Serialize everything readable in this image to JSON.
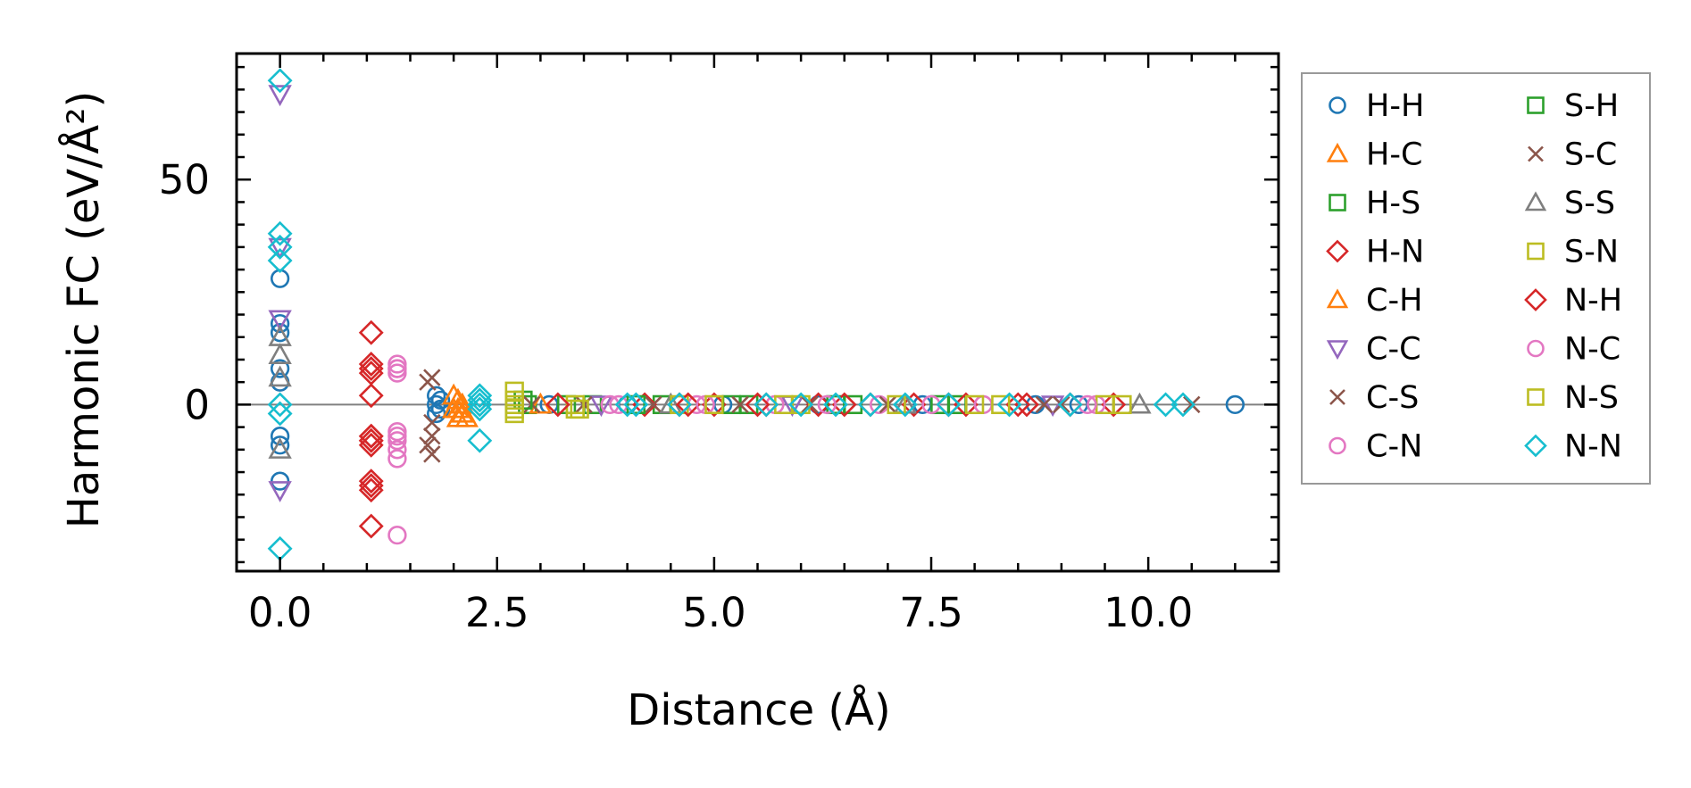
{
  "chart_data": {
    "type": "scatter",
    "title": "",
    "xlabel": "Distance (Å)",
    "ylabel": "Harmonic FC (eV/Å²)",
    "xlim": [
      -0.5,
      11.5
    ],
    "ylim": [
      -37,
      78
    ],
    "xticks": [
      0.0,
      2.5,
      5.0,
      7.5,
      10.0
    ],
    "xtick_labels": [
      "0.0",
      "2.5",
      "5.0",
      "7.5",
      "10.0"
    ],
    "yticks": [
      0,
      50
    ],
    "ytick_labels": [
      "0",
      "50"
    ],
    "grid": false,
    "zero_line": true,
    "legend": {
      "placement": "outside-right",
      "columns": 2
    },
    "series": [
      {
        "name": "H-H",
        "marker": "circle",
        "color": "#1f77b4",
        "points": [
          [
            0,
            28
          ],
          [
            0,
            18
          ],
          [
            0,
            16
          ],
          [
            0,
            8
          ],
          [
            0,
            5
          ],
          [
            0,
            -7
          ],
          [
            0,
            -9
          ],
          [
            0,
            -17
          ],
          [
            1.8,
            2
          ],
          [
            1.8,
            0
          ],
          [
            1.8,
            -2
          ],
          [
            1.85,
            1
          ],
          [
            1.85,
            -1
          ],
          [
            3.1,
            0
          ],
          [
            4.0,
            0
          ],
          [
            5.1,
            0
          ],
          [
            6.2,
            0
          ],
          [
            7.4,
            0
          ],
          [
            8.7,
            0
          ],
          [
            9.2,
            0
          ],
          [
            11.0,
            0
          ]
        ]
      },
      {
        "name": "H-C",
        "marker": "triangle-up",
        "color": "#ff7f0e",
        "points": [
          [
            2.05,
            1
          ],
          [
            2.05,
            -1
          ],
          [
            2.1,
            0
          ],
          [
            2.1,
            -2
          ],
          [
            2.15,
            -3
          ]
        ]
      },
      {
        "name": "H-S",
        "marker": "square",
        "color": "#2ca02c",
        "points": [
          [
            2.85,
            0
          ],
          [
            3.6,
            0
          ],
          [
            4.4,
            0
          ],
          [
            5.4,
            0
          ],
          [
            6.6,
            0
          ],
          [
            7.8,
            0
          ]
        ]
      },
      {
        "name": "H-N",
        "marker": "diamond",
        "color": "#d62728",
        "points": [
          [
            1.05,
            16
          ],
          [
            1.05,
            9
          ],
          [
            1.05,
            8
          ],
          [
            1.05,
            7
          ],
          [
            1.05,
            2
          ],
          [
            1.05,
            -7
          ],
          [
            1.05,
            -8
          ],
          [
            1.05,
            -9
          ],
          [
            1.05,
            -17
          ],
          [
            1.05,
            -19
          ],
          [
            1.05,
            -27
          ],
          [
            4.2,
            0
          ],
          [
            4.6,
            0
          ],
          [
            5.0,
            0
          ],
          [
            5.6,
            0
          ],
          [
            6.2,
            0
          ],
          [
            6.8,
            0
          ],
          [
            7.3,
            0
          ],
          [
            7.9,
            0
          ],
          [
            8.5,
            0
          ],
          [
            9.1,
            0
          ],
          [
            9.6,
            0
          ]
        ]
      },
      {
        "name": "C-H",
        "marker": "triangle-up",
        "color": "#ff7f0e",
        "points": [
          [
            2.0,
            2
          ],
          [
            2.0,
            -1
          ],
          [
            2.05,
            -3
          ],
          [
            3.0,
            0
          ]
        ]
      },
      {
        "name": "C-C",
        "marker": "triangle-down",
        "color": "#9467bd",
        "points": [
          [
            0,
            69
          ],
          [
            0,
            35
          ],
          [
            0,
            19
          ],
          [
            0,
            -19
          ],
          [
            3.7,
            0
          ],
          [
            5.9,
            0
          ],
          [
            8.9,
            0
          ]
        ]
      },
      {
        "name": "C-S",
        "marker": "x",
        "color": "#8c564b",
        "points": [
          [
            1.75,
            6
          ],
          [
            1.75,
            -4
          ],
          [
            1.75,
            -7
          ],
          [
            1.75,
            -11
          ],
          [
            2.9,
            0
          ],
          [
            4.3,
            0
          ],
          [
            6.1,
            0
          ],
          [
            8.8,
            0
          ],
          [
            10.5,
            0
          ]
        ]
      },
      {
        "name": "C-N",
        "marker": "circle",
        "color": "#e377c2",
        "points": [
          [
            1.35,
            9
          ],
          [
            1.35,
            8
          ],
          [
            1.35,
            7
          ],
          [
            1.35,
            -6
          ],
          [
            1.35,
            -8
          ],
          [
            1.35,
            -10
          ],
          [
            1.35,
            -12
          ],
          [
            1.35,
            -29
          ],
          [
            3.9,
            0
          ],
          [
            4.8,
            0
          ],
          [
            5.7,
            0
          ],
          [
            6.9,
            0
          ],
          [
            8.1,
            0
          ],
          [
            9.4,
            0
          ]
        ]
      },
      {
        "name": "S-H",
        "marker": "square",
        "color": "#2ca02c",
        "points": [
          [
            2.8,
            1
          ],
          [
            3.3,
            0
          ],
          [
            4.1,
            0
          ],
          [
            5.2,
            0
          ],
          [
            6.4,
            0
          ],
          [
            7.6,
            0
          ]
        ]
      },
      {
        "name": "S-C",
        "marker": "x",
        "color": "#8c564b",
        "points": [
          [
            1.7,
            5
          ],
          [
            1.7,
            -9
          ],
          [
            3.5,
            0
          ],
          [
            5.3,
            0
          ],
          [
            7.0,
            0
          ],
          [
            9.0,
            0
          ]
        ]
      },
      {
        "name": "S-S",
        "marker": "triangle-up",
        "color": "#7f7f7f",
        "points": [
          [
            0,
            15
          ],
          [
            0,
            11
          ],
          [
            0,
            6
          ],
          [
            0,
            -10
          ],
          [
            4.5,
            0
          ],
          [
            7.2,
            0
          ],
          [
            9.9,
            0
          ]
        ]
      },
      {
        "name": "S-N",
        "marker": "square",
        "color": "#bcbd22",
        "points": [
          [
            2.7,
            3
          ],
          [
            2.7,
            0
          ],
          [
            2.7,
            -2
          ],
          [
            3.4,
            0
          ],
          [
            3.4,
            -1
          ],
          [
            4.6,
            0
          ],
          [
            5.8,
            0
          ],
          [
            7.1,
            0
          ],
          [
            8.3,
            0
          ],
          [
            9.5,
            0
          ]
        ]
      },
      {
        "name": "N-H",
        "marker": "diamond",
        "color": "#d62728",
        "points": [
          [
            1.05,
            -7
          ],
          [
            1.05,
            -8
          ],
          [
            1.05,
            -18
          ],
          [
            3.2,
            0
          ],
          [
            4.7,
            0
          ],
          [
            5.5,
            0
          ],
          [
            6.5,
            0
          ],
          [
            7.7,
            0
          ],
          [
            8.6,
            0
          ]
        ]
      },
      {
        "name": "N-C",
        "marker": "circle",
        "color": "#e377c2",
        "points": [
          [
            1.35,
            8
          ],
          [
            1.35,
            -7
          ],
          [
            3.8,
            0
          ],
          [
            4.9,
            0
          ],
          [
            6.3,
            0
          ],
          [
            7.5,
            0
          ],
          [
            9.3,
            0
          ]
        ]
      },
      {
        "name": "N-S",
        "marker": "square",
        "color": "#bcbd22",
        "points": [
          [
            2.7,
            1
          ],
          [
            2.7,
            -1
          ],
          [
            3.45,
            -1
          ],
          [
            5.0,
            0
          ],
          [
            6.0,
            0
          ],
          [
            8.0,
            0
          ],
          [
            9.7,
            0
          ]
        ]
      },
      {
        "name": "N-N",
        "marker": "diamond",
        "color": "#17becf",
        "points": [
          [
            0,
            72
          ],
          [
            0,
            38
          ],
          [
            0,
            35
          ],
          [
            0,
            32
          ],
          [
            0,
            0
          ],
          [
            0,
            -2
          ],
          [
            0,
            -32
          ],
          [
            2.3,
            2
          ],
          [
            2.3,
            1
          ],
          [
            2.3,
            0
          ],
          [
            2.3,
            -1
          ],
          [
            2.3,
            -8
          ],
          [
            4.0,
            0
          ],
          [
            4.1,
            0
          ],
          [
            4.6,
            0
          ],
          [
            5.6,
            0
          ],
          [
            6.0,
            0
          ],
          [
            6.4,
            0
          ],
          [
            6.8,
            0
          ],
          [
            7.2,
            0
          ],
          [
            7.7,
            0
          ],
          [
            8.4,
            0
          ],
          [
            9.1,
            0
          ],
          [
            10.2,
            0
          ],
          [
            10.4,
            0
          ]
        ]
      }
    ]
  }
}
